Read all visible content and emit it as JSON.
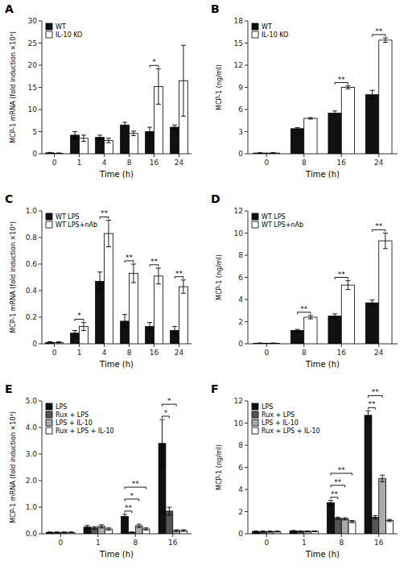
{
  "chart_data": [
    {
      "type": "bar",
      "title": "A",
      "xlabel": "Time (h)",
      "ylabel": "MCP-1 mRNA (fold induction ×10³)",
      "categories": [
        "0",
        "1",
        "4",
        "8",
        "16",
        "24"
      ],
      "series": [
        {
          "name": "WT",
          "color": "#111111",
          "values": [
            0.2,
            4.2,
            3.7,
            6.5,
            5.0,
            6.0
          ],
          "errors": [
            0.1,
            0.8,
            0.5,
            0.6,
            1.0,
            0.5
          ]
        },
        {
          "name": "IL-10 KO",
          "color": "#ffffff",
          "values": [
            0.1,
            3.5,
            3.0,
            4.6,
            15.2,
            16.5
          ],
          "errors": [
            0.1,
            0.7,
            0.5,
            0.5,
            4.0,
            8.0
          ]
        }
      ],
      "ylim": [
        0,
        30
      ],
      "yticks": [
        0,
        5,
        10,
        15,
        20,
        25,
        30
      ],
      "grid": false,
      "legend": "upper left",
      "annotations": [
        {
          "text": "*",
          "category": "16",
          "series": [
            "WT",
            "IL-10 KO"
          ]
        }
      ]
    },
    {
      "type": "bar",
      "title": "B",
      "xlabel": "Time (h)",
      "ylabel": "MCP-1 (ng/ml)",
      "categories": [
        "0",
        "8",
        "16",
        "24"
      ],
      "series": [
        {
          "name": "WT",
          "color": "#111111",
          "values": [
            0.1,
            3.4,
            5.5,
            8.0
          ],
          "errors": [
            0.05,
            0.15,
            0.3,
            0.6
          ]
        },
        {
          "name": "IL-10 KO",
          "color": "#ffffff",
          "values": [
            0.1,
            4.8,
            9.0,
            15.4
          ],
          "errors": [
            0.05,
            0.1,
            0.2,
            0.3
          ]
        }
      ],
      "ylim": [
        0,
        18
      ],
      "yticks": [
        0,
        3,
        6,
        9,
        12,
        15,
        18
      ],
      "grid": false,
      "legend": "upper left",
      "annotations": [
        {
          "text": "**",
          "category": "16",
          "series": [
            "WT",
            "IL-10 KO"
          ]
        },
        {
          "text": "**",
          "category": "24",
          "series": [
            "WT",
            "IL-10 KO"
          ]
        }
      ]
    },
    {
      "type": "bar",
      "title": "C",
      "xlabel": "Time (h)",
      "ylabel": "MCP-1 mRNA (fold induction ×10³)",
      "categories": [
        "0",
        "1",
        "4",
        "8",
        "16",
        "24"
      ],
      "series": [
        {
          "name": "WT LPS",
          "color": "#111111",
          "values": [
            0.01,
            0.08,
            0.47,
            0.17,
            0.13,
            0.1
          ],
          "errors": [
            0.005,
            0.02,
            0.07,
            0.05,
            0.03,
            0.03
          ]
        },
        {
          "name": "WT LPS+nAb",
          "color": "#ffffff",
          "values": [
            0.01,
            0.13,
            0.83,
            0.53,
            0.51,
            0.43
          ],
          "errors": [
            0.005,
            0.03,
            0.1,
            0.07,
            0.06,
            0.05
          ]
        }
      ],
      "ylim": [
        0,
        1.0
      ],
      "yticks": [
        0,
        0.2,
        0.4,
        0.6,
        0.8,
        {
          "value": 1.0,
          "label": "1.0"
        }
      ],
      "grid": false,
      "legend": "upper left",
      "annotations": [
        {
          "text": "*",
          "category": "1",
          "series": [
            "WT LPS",
            "WT LPS+nAb"
          ]
        },
        {
          "text": "**",
          "category": "4",
          "series": [
            "WT LPS",
            "WT LPS+nAb"
          ]
        },
        {
          "text": "**",
          "category": "8",
          "series": [
            "WT LPS",
            "WT LPS+nAb"
          ]
        },
        {
          "text": "**",
          "category": "16",
          "series": [
            "WT LPS",
            "WT LPS+nAb"
          ]
        },
        {
          "text": "**",
          "category": "24",
          "series": [
            "WT LPS",
            "WT LPS+nAb"
          ]
        }
      ]
    },
    {
      "type": "bar",
      "title": "D",
      "xlabel": "Time (h)",
      "ylabel": "MCP-1 (ng/ml)",
      "categories": [
        "0",
        "8",
        "16",
        "24"
      ],
      "series": [
        {
          "name": "WT LPS",
          "color": "#111111",
          "values": [
            0.05,
            1.2,
            2.5,
            3.7
          ],
          "errors": [
            0.02,
            0.1,
            0.2,
            0.25
          ]
        },
        {
          "name": "WT LPS+nAb",
          "color": "#ffffff",
          "values": [
            0.05,
            2.4,
            5.3,
            9.3
          ],
          "errors": [
            0.02,
            0.15,
            0.4,
            0.7
          ]
        }
      ],
      "ylim": [
        0,
        12
      ],
      "yticks": [
        0,
        2,
        4,
        6,
        8,
        10,
        12
      ],
      "grid": false,
      "legend": "upper left",
      "annotations": [
        {
          "text": "**",
          "category": "8",
          "series": [
            "WT LPS",
            "WT LPS+nAb"
          ]
        },
        {
          "text": "**",
          "category": "16",
          "series": [
            "WT LPS",
            "WT LPS+nAb"
          ]
        },
        {
          "text": "**",
          "category": "24",
          "series": [
            "WT LPS",
            "WT LPS+nAb"
          ]
        }
      ]
    },
    {
      "type": "bar",
      "title": "E",
      "xlabel": "Time (h)",
      "ylabel": "MCP-1 mRNA (fold induction ×10³)",
      "categories": [
        "0",
        "1",
        "8",
        "16"
      ],
      "series": [
        {
          "name": "LPS",
          "color": "#111111",
          "values": [
            0.05,
            0.25,
            0.65,
            3.4
          ],
          "errors": [
            0.02,
            0.06,
            0.08,
            0.9
          ]
        },
        {
          "name": "Rux + LPS",
          "color": "#555555",
          "values": [
            0.05,
            0.22,
            0.05,
            0.85
          ],
          "errors": [
            0.02,
            0.05,
            0.02,
            0.15
          ]
        },
        {
          "name": "LPS + IL-10",
          "color": "#aaaaaa",
          "values": [
            0.05,
            0.28,
            0.3,
            0.12
          ],
          "errors": [
            0.02,
            0.06,
            0.06,
            0.03
          ]
        },
        {
          "name": "Rux + LPS + IL-10",
          "color": "#ffffff",
          "values": [
            0.05,
            0.18,
            0.18,
            0.12
          ],
          "errors": [
            0.02,
            0.04,
            0.04,
            0.03
          ]
        }
      ],
      "ylim": [
        0,
        5.0
      ],
      "yticks": [
        {
          "value": 0.0,
          "label": "0.0"
        },
        {
          "value": 1.0,
          "label": "1.0"
        },
        {
          "value": 2.0,
          "label": "2.0"
        },
        {
          "value": 3.0,
          "label": "3.0"
        },
        {
          "value": 4.0,
          "label": "4.0"
        },
        {
          "value": 5.0,
          "label": "5.0"
        }
      ],
      "grid": false,
      "legend": "upper left",
      "annotations": [
        {
          "text": "**",
          "category": "8",
          "series": [
            "LPS",
            "Rux + LPS"
          ]
        },
        {
          "text": "*",
          "category": "8",
          "series": [
            "LPS",
            "LPS + IL-10"
          ]
        },
        {
          "text": "**",
          "category": "8",
          "series": [
            "LPS",
            "Rux + LPS + IL-10"
          ]
        },
        {
          "text": "*",
          "category": "16",
          "series": [
            "LPS",
            "Rux + LPS"
          ]
        },
        {
          "text": "*",
          "category": "16",
          "series": [
            "LPS",
            "LPS + IL-10"
          ]
        }
      ]
    },
    {
      "type": "bar",
      "title": "F",
      "xlabel": "Time (h)",
      "ylabel": "MCP-1 (ng/ml)",
      "categories": [
        "0",
        "1",
        "8",
        "16"
      ],
      "series": [
        {
          "name": "LPS",
          "color": "#111111",
          "values": [
            0.2,
            0.25,
            2.8,
            10.7
          ],
          "errors": [
            0.05,
            0.05,
            0.2,
            0.4
          ]
        },
        {
          "name": "Rux + LPS",
          "color": "#555555",
          "values": [
            0.2,
            0.22,
            1.4,
            1.5
          ],
          "errors": [
            0.05,
            0.04,
            0.1,
            0.15
          ]
        },
        {
          "name": "LPS + IL-10",
          "color": "#aaaaaa",
          "values": [
            0.2,
            0.22,
            1.35,
            5.0
          ],
          "errors": [
            0.05,
            0.04,
            0.1,
            0.3
          ]
        },
        {
          "name": "Rux + LPS + IL-10",
          "color": "#ffffff",
          "values": [
            0.2,
            0.22,
            1.1,
            1.2
          ],
          "errors": [
            0.05,
            0.04,
            0.1,
            0.1
          ]
        }
      ],
      "ylim": [
        0,
        12
      ],
      "yticks": [
        0,
        2,
        4,
        6,
        8,
        10,
        12
      ],
      "grid": false,
      "legend": "upper left",
      "annotations": [
        {
          "text": "**",
          "category": "8",
          "series": [
            "LPS",
            "Rux + LPS"
          ]
        },
        {
          "text": "**",
          "category": "8",
          "series": [
            "LPS",
            "LPS + IL-10"
          ]
        },
        {
          "text": "**",
          "category": "8",
          "series": [
            "LPS",
            "Rux + LPS + IL-10"
          ]
        },
        {
          "text": "**",
          "category": "16",
          "series": [
            "LPS",
            "Rux + LPS"
          ]
        },
        {
          "text": "**",
          "category": "16",
          "series": [
            "LPS",
            "LPS + IL-10"
          ]
        }
      ]
    }
  ]
}
